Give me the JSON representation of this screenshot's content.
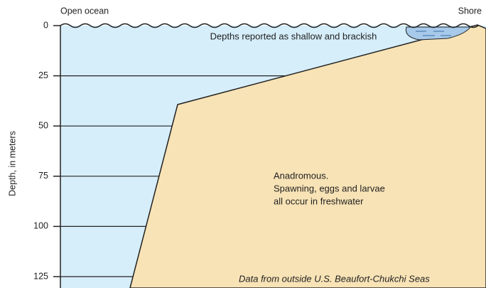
{
  "labels": {
    "left": "Open ocean",
    "right": "Shore",
    "axis": "Depth, in meters"
  },
  "ticks": [
    "0",
    "25",
    "50",
    "75",
    "100",
    "125"
  ],
  "notes": {
    "shallow": "Depths reported as shallow and brackish",
    "anadromous": [
      "Anadromous.",
      "Spawning, eggs and larvae",
      "all occur in freshwater"
    ],
    "source": "Data from outside U.S. Beaufort-Chukchi Seas"
  }
}
